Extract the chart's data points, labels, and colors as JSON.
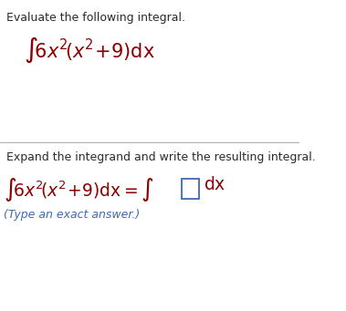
{
  "bg_color": "#ffffff",
  "text_color_dark": "#2b2b2b",
  "text_color_math": "#8B0000",
  "text_color_blue": "#4169B0",
  "line1_text": "Evaluate the following integral.",
  "line3_text": "Expand the integrand and write the resulting integral.",
  "line5_text": "(Type an exact answer.)",
  "figsize": [
    3.79,
    3.41
  ],
  "dpi": 100
}
